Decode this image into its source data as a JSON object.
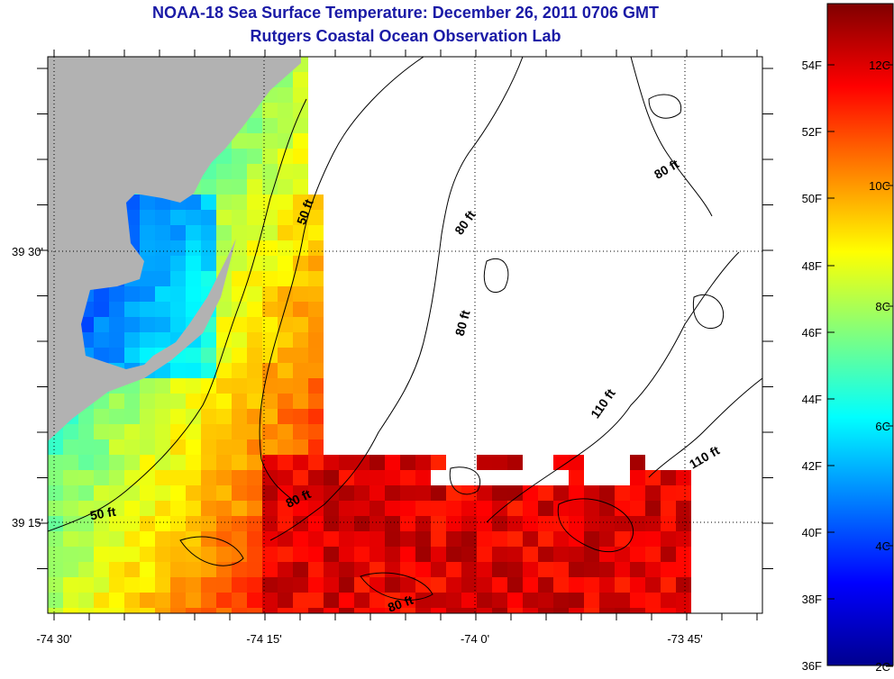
{
  "title": {
    "line1": "NOAA-18 Sea Surface Temperature:  December 26, 2011 0706 GMT",
    "line2": "Rutgers Coastal Ocean Observation Lab"
  },
  "axes": {
    "x_ticks": [
      "-74 30'",
      "-74 15'",
      "-74 0'",
      "-73 45'"
    ],
    "y_ticks": [
      "39 30'",
      "39 15'"
    ]
  },
  "contour_labels": [
    {
      "text": "50 ft",
      "id": "contour-50-north"
    },
    {
      "text": "80 ft",
      "id": "contour-80-mid"
    },
    {
      "text": "80 ft",
      "id": "contour-80-ne"
    },
    {
      "text": "80 ft",
      "id": "contour-80-center"
    },
    {
      "text": "110 ft",
      "id": "contour-110-center"
    },
    {
      "text": "110 ft",
      "id": "contour-110-east"
    },
    {
      "text": "50 ft",
      "id": "contour-50-south"
    },
    {
      "text": "80 ft",
      "id": "contour-80-sw"
    },
    {
      "text": "80 ft",
      "id": "contour-80-south"
    }
  ],
  "colorbar": {
    "fahrenheit": [
      "54F",
      "52F",
      "50F",
      "48F",
      "46F",
      "44F",
      "42F",
      "40F",
      "38F",
      "36F"
    ],
    "celsius": [
      "12C",
      "10C",
      "8C",
      "6C",
      "4C",
      "2C"
    ]
  },
  "colors": {
    "title": "#1a1aa6",
    "land": "#b2b2b2",
    "no_data": "#ffffff"
  }
}
